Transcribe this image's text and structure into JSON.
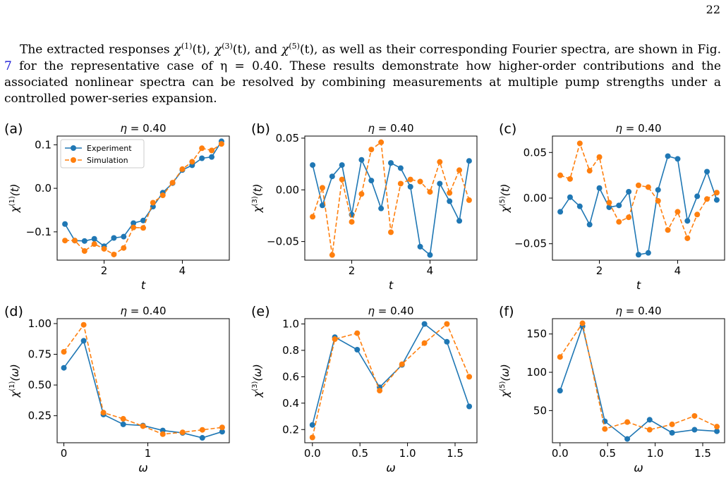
{
  "page_number": "22",
  "paragraph": {
    "part1": "The extracted responses ",
    "chi": "χ",
    "sup1": "(1)",
    "t1": "(t), ",
    "sup3": "(3)",
    "t3": "(t), and ",
    "sup5": "(5)",
    "t5": "(t), as well as their corresponding Fourier spectra, are shown in Fig. ",
    "fig_ref": "7",
    "part2": " for the representative case of η = 0.40. These results demonstrate how higher-order contributions and the associated nonlinear spectra can be resolved by combining measurements at multiple pump strengths under a controlled power-series expansion."
  },
  "legend": {
    "experiment": "Experiment",
    "simulation": "Simulation"
  },
  "colors": {
    "experiment": "#1f77b4",
    "simulation": "#ff7f0e"
  },
  "chart_data": [
    {
      "type": "line",
      "panel": "(a)",
      "title": "η = 0.40",
      "xlabel": "t",
      "ylabel": "χ(1)(t)",
      "xlim": [
        0.8,
        5.2
      ],
      "ylim": [
        -0.165,
        0.12
      ],
      "xticks": [
        2,
        4
      ],
      "xtick_labels": [
        "2",
        "4"
      ],
      "yticks": [
        -0.1,
        0.0,
        0.1
      ],
      "ytick_labels": [
        "−0.1",
        "0.0",
        "0.1"
      ],
      "legend": true,
      "x": [
        1.0,
        1.25,
        1.5,
        1.75,
        2.0,
        2.25,
        2.5,
        2.75,
        3.0,
        3.25,
        3.5,
        3.75,
        4.0,
        4.25,
        4.5,
        4.75,
        5.0
      ],
      "series": [
        {
          "name": "Experiment",
          "values": [
            -0.082,
            -0.12,
            -0.121,
            -0.116,
            -0.133,
            -0.114,
            -0.111,
            -0.08,
            -0.074,
            -0.042,
            -0.01,
            0.012,
            0.042,
            0.053,
            0.069,
            0.072,
            0.108
          ]
        },
        {
          "name": "Simulation",
          "values": [
            -0.12,
            -0.12,
            -0.144,
            -0.128,
            -0.139,
            -0.152,
            -0.137,
            -0.09,
            -0.091,
            -0.033,
            -0.016,
            0.013,
            0.044,
            0.061,
            0.092,
            0.087,
            0.102
          ]
        }
      ]
    },
    {
      "type": "line",
      "panel": "(b)",
      "title": "η = 0.40",
      "xlabel": "t",
      "ylabel": "χ(3)(t)",
      "xlim": [
        0.8,
        5.2
      ],
      "ylim": [
        -0.068,
        0.052
      ],
      "xticks": [
        2,
        4
      ],
      "xtick_labels": [
        "2",
        "4"
      ],
      "yticks": [
        -0.05,
        0.0,
        0.05
      ],
      "ytick_labels": [
        "−0.05",
        "0.00",
        "0.05"
      ],
      "legend": false,
      "x": [
        1.0,
        1.25,
        1.5,
        1.75,
        2.0,
        2.25,
        2.5,
        2.75,
        3.0,
        3.25,
        3.5,
        3.75,
        4.0,
        4.25,
        4.5,
        4.75,
        5.0
      ],
      "series": [
        {
          "name": "Experiment",
          "values": [
            0.024,
            -0.015,
            0.013,
            0.024,
            -0.024,
            0.029,
            0.009,
            -0.018,
            0.026,
            0.021,
            0.003,
            -0.055,
            -0.063,
            0.006,
            -0.011,
            -0.03,
            0.028
          ]
        },
        {
          "name": "Simulation",
          "values": [
            -0.026,
            0.002,
            -0.063,
            0.01,
            -0.031,
            -0.004,
            0.039,
            0.046,
            -0.041,
            0.006,
            0.01,
            0.008,
            -0.002,
            0.027,
            -0.003,
            0.019,
            -0.01
          ]
        }
      ]
    },
    {
      "type": "line",
      "panel": "(c)",
      "title": "η = 0.40",
      "xlabel": "t",
      "ylabel": "χ(5)(t)",
      "xlim": [
        0.8,
        5.2
      ],
      "ylim": [
        -0.068,
        0.068
      ],
      "xticks": [
        2,
        4
      ],
      "xtick_labels": [
        "2",
        "4"
      ],
      "yticks": [
        -0.05,
        0.0,
        0.05
      ],
      "ytick_labels": [
        "−0.05",
        "0.00",
        "0.05"
      ],
      "legend": false,
      "x": [
        1.0,
        1.25,
        1.5,
        1.75,
        2.0,
        2.25,
        2.5,
        2.75,
        3.0,
        3.25,
        3.5,
        3.75,
        4.0,
        4.25,
        4.5,
        4.75,
        5.0
      ],
      "series": [
        {
          "name": "Experiment",
          "values": [
            -0.015,
            0.001,
            -0.009,
            -0.029,
            0.011,
            -0.01,
            -0.008,
            0.007,
            -0.062,
            -0.06,
            0.009,
            0.046,
            0.043,
            -0.025,
            0.002,
            0.029,
            -0.002
          ]
        },
        {
          "name": "Simulation",
          "values": [
            0.025,
            0.021,
            0.06,
            0.03,
            0.045,
            -0.005,
            -0.026,
            -0.021,
            0.014,
            0.012,
            -0.003,
            -0.035,
            -0.015,
            -0.044,
            -0.018,
            -0.001,
            0.006
          ]
        }
      ]
    },
    {
      "type": "line",
      "panel": "(d)",
      "title": "η = 0.40",
      "xlabel": "ω",
      "ylabel": "χ(1)(ω)",
      "xlim": [
        -0.08,
        1.97
      ],
      "ylim": [
        0.03,
        1.04
      ],
      "xticks": [
        0,
        1
      ],
      "xtick_labels": [
        "0",
        "1"
      ],
      "yticks": [
        0.25,
        0.5,
        0.75,
        1.0
      ],
      "ytick_labels": [
        "0.25",
        "0.50",
        "0.75",
        "1.00"
      ],
      "legend": false,
      "x": [
        0.0,
        0.236,
        0.471,
        0.707,
        0.942,
        1.178,
        1.414,
        1.649,
        1.885
      ],
      "series": [
        {
          "name": "Experiment",
          "values": [
            0.64,
            0.86,
            0.26,
            0.18,
            0.17,
            0.13,
            0.11,
            0.07,
            0.12
          ]
        },
        {
          "name": "Simulation",
          "values": [
            0.77,
            0.99,
            0.275,
            0.225,
            0.165,
            0.1,
            0.115,
            0.135,
            0.155
          ]
        }
      ]
    },
    {
      "type": "line",
      "panel": "(e)",
      "title": "η = 0.40",
      "xlabel": "ω",
      "ylabel": "χ(3)(ω)",
      "xlim": [
        -0.08,
        1.73
      ],
      "ylim": [
        0.1,
        1.04
      ],
      "xticks": [
        0.0,
        0.5,
        1.0,
        1.5
      ],
      "xtick_labels": [
        "0.0",
        "0.5",
        "1.0",
        "1.5"
      ],
      "yticks": [
        0.2,
        0.4,
        0.6,
        0.8,
        1.0
      ],
      "ytick_labels": [
        "0.2",
        "0.4",
        "0.6",
        "0.8",
        "1.0"
      ],
      "legend": false,
      "x": [
        0.0,
        0.236,
        0.471,
        0.707,
        0.942,
        1.178,
        1.414,
        1.649
      ],
      "series": [
        {
          "name": "Experiment",
          "values": [
            0.235,
            0.9,
            0.805,
            0.52,
            0.69,
            1.0,
            0.865,
            0.375
          ]
        },
        {
          "name": "Simulation",
          "values": [
            0.14,
            0.885,
            0.93,
            0.495,
            0.695,
            0.855,
            1.0,
            0.6
          ]
        }
      ]
    },
    {
      "type": "line",
      "panel": "(f)",
      "title": "η = 0.40",
      "xlabel": "ω",
      "ylabel": "χ(5)(ω)",
      "xlim": [
        -0.08,
        1.73
      ],
      "ylim": [
        8,
        170
      ],
      "xticks": [
        0.0,
        0.5,
        1.0,
        1.5
      ],
      "xtick_labels": [
        "0.0",
        "0.5",
        "1.0",
        "1.5"
      ],
      "yticks": [
        50,
        100,
        150
      ],
      "ytick_labels": [
        "50",
        "100",
        "150"
      ],
      "legend": false,
      "x": [
        0.0,
        0.236,
        0.471,
        0.707,
        0.942,
        1.178,
        1.414,
        1.649
      ],
      "series": [
        {
          "name": "Experiment",
          "values": [
            76,
            160,
            36,
            13,
            38,
            21,
            25,
            23
          ]
        },
        {
          "name": "Simulation",
          "values": [
            120,
            164,
            26,
            35,
            25,
            32,
            43,
            29
          ]
        }
      ]
    }
  ]
}
